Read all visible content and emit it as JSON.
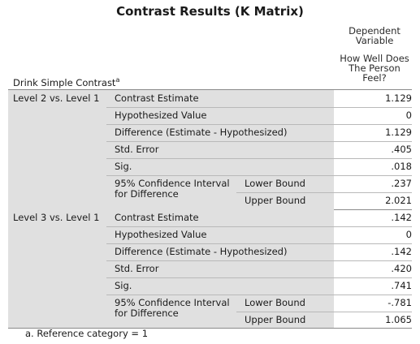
{
  "title": "Contrast Results (K Matrix)",
  "dependent_header": "Dependent Variable",
  "dependent_name": "How Well Does The Person Feel?",
  "row_header": "Drink Simple Contrast",
  "row_header_sup": "a",
  "groups": [
    {
      "label": "Level 2 vs. Level 1",
      "contrast_estimate": {
        "label": "Contrast Estimate",
        "value": "1.129"
      },
      "hypothesized_value": {
        "label": "Hypothesized Value",
        "value": "0"
      },
      "difference": {
        "label": "Difference (Estimate - Hypothesized)",
        "value": "1.129"
      },
      "std_error": {
        "label": "Std. Error",
        "value": ".405"
      },
      "sig": {
        "label": "Sig.",
        "value": ".018"
      },
      "ci_label": "95% Confidence Interval for Difference",
      "lower_bound": {
        "label": "Lower Bound",
        "value": ".237"
      },
      "upper_bound": {
        "label": "Upper Bound",
        "value": "2.021"
      }
    },
    {
      "label": "Level 3 vs. Level 1",
      "contrast_estimate": {
        "label": "Contrast Estimate",
        "value": ".142"
      },
      "hypothesized_value": {
        "label": "Hypothesized Value",
        "value": "0"
      },
      "difference": {
        "label": "Difference (Estimate - Hypothesized)",
        "value": ".142"
      },
      "std_error": {
        "label": "Std. Error",
        "value": ".420"
      },
      "sig": {
        "label": "Sig.",
        "value": ".741"
      },
      "ci_label": "95% Confidence Interval for Difference",
      "lower_bound": {
        "label": "Lower Bound",
        "value": "-.781"
      },
      "upper_bound": {
        "label": "Upper Bound",
        "value": "1.065"
      }
    }
  ],
  "footnote": "a. Reference category = 1"
}
